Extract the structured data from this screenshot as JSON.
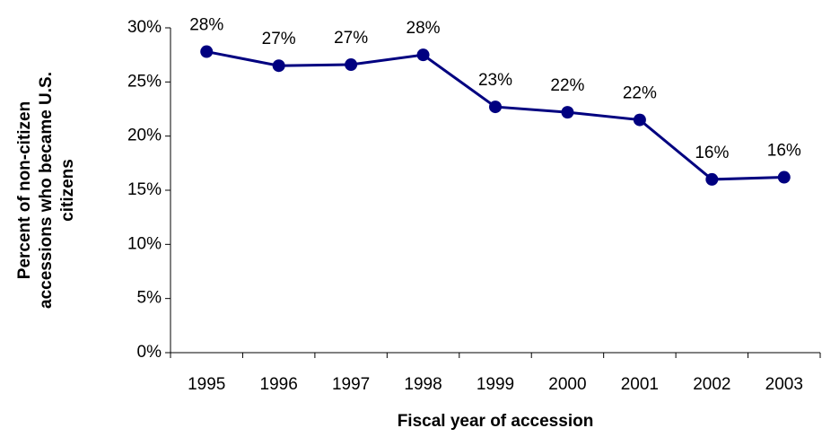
{
  "chart_data": {
    "type": "line",
    "xlabel": "Fiscal year of accession",
    "ylabel": [
      "Percent of non-citizen",
      "accessions who became U.S.",
      "citizens"
    ],
    "categories": [
      "1995",
      "1996",
      "1997",
      "1998",
      "1999",
      "2000",
      "2001",
      "2002",
      "2003"
    ],
    "series": [
      {
        "color": "#000080",
        "values": [
          27.8,
          26.5,
          26.6,
          27.5,
          22.7,
          22.2,
          21.5,
          16.0,
          16.2
        ],
        "value_labels": [
          "28%",
          "27%",
          "27%",
          "28%",
          "23%",
          "22%",
          "22%",
          "16%",
          "16%"
        ]
      }
    ],
    "ylim": [
      0,
      30
    ],
    "yticks": [
      {
        "value": 0,
        "label": "0%"
      },
      {
        "value": 5,
        "label": "5%"
      },
      {
        "value": 10,
        "label": "10%"
      },
      {
        "value": 15,
        "label": "15%"
      },
      {
        "value": 20,
        "label": "20%"
      },
      {
        "value": 25,
        "label": "25%"
      },
      {
        "value": 30,
        "label": "30%"
      }
    ],
    "grid": false
  }
}
